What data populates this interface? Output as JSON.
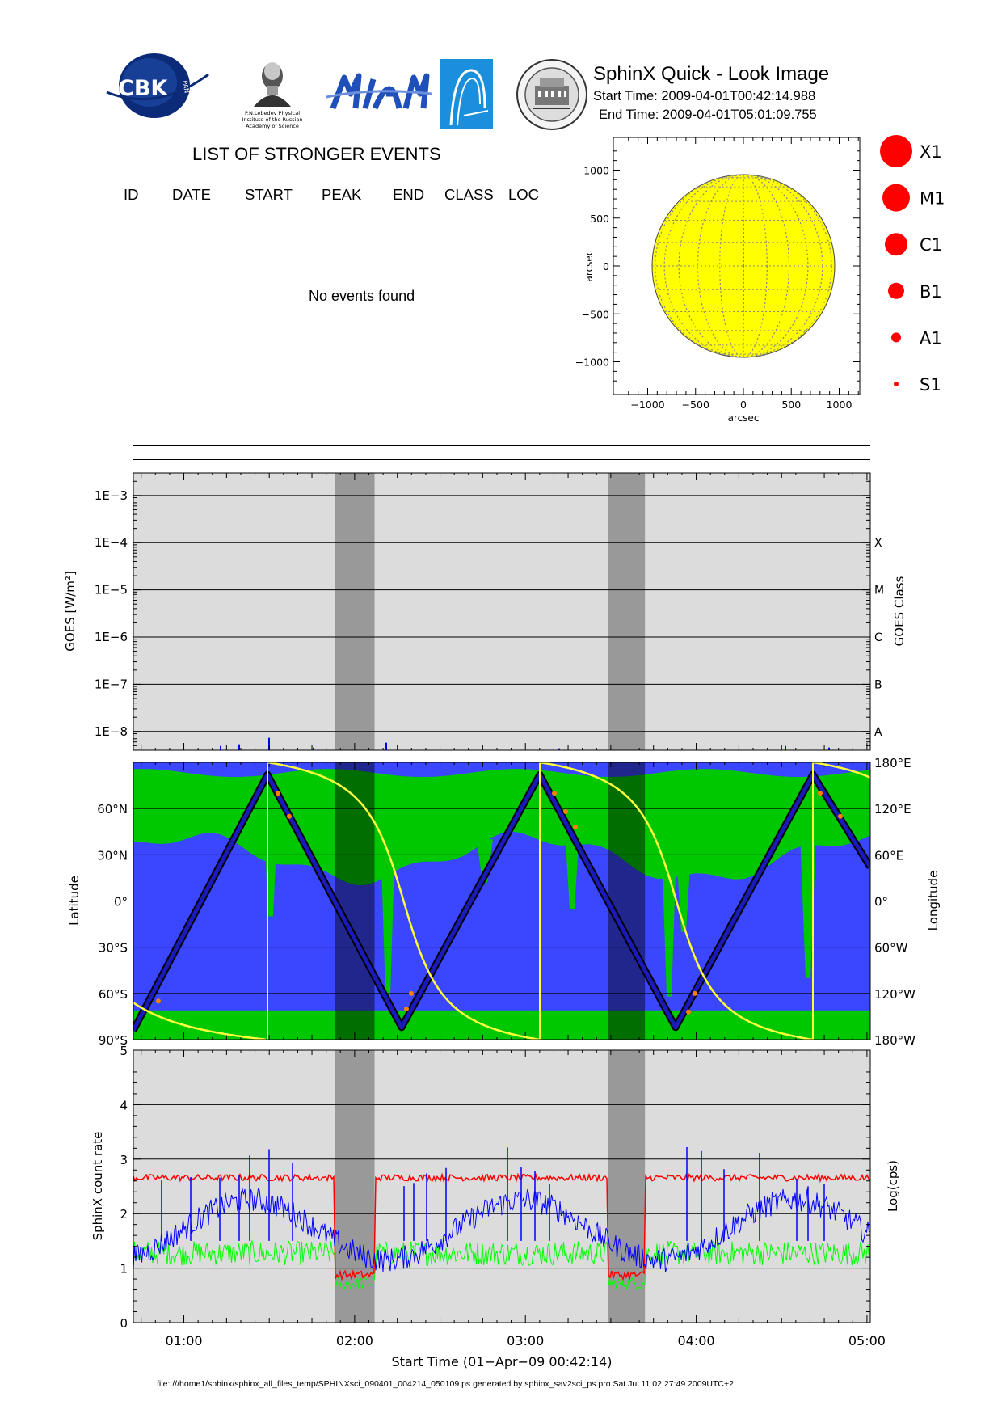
{
  "header": {
    "title": "SphinX Quick - Look Image",
    "start_time": "Start Time: 2009-04-01T00:42:14.988",
    "end_time": "End Time: 2009-04-01T05:01:09.755",
    "logos": [
      "CBK PAN",
      "P.N.Lebedev Physical Institute of the Russian Academy of Science",
      "MIFI",
      "arc-icon",
      "university-seal"
    ],
    "logo_texts": {
      "cbk": "CBK",
      "pan": "PAN",
      "lebedev": [
        "P.N.Lebedev Physical",
        "Institute of the Russian",
        "Academy of Science"
      ]
    }
  },
  "events": {
    "title": "LIST OF STRONGER EVENTS",
    "columns": [
      "ID",
      "DATE",
      "START",
      "PEAK",
      "END",
      "CLASS",
      "LOC"
    ],
    "empty_message": "No events found"
  },
  "sun_map": {
    "xlabel": "arcsec",
    "ylabel": "arcsec",
    "xticks": [
      "−1000",
      "−500",
      "0",
      "500",
      "1000"
    ],
    "yticks": [
      "1000",
      "500",
      "0",
      "−500",
      "−1000"
    ],
    "disk_color": "#ffff00",
    "legend": [
      "X1",
      "M1",
      "C1",
      "B1",
      "A1",
      "S1"
    ],
    "legend_color": "#ff0000"
  },
  "x_axis": {
    "ticks": [
      "01:00",
      "02:00",
      "03:00",
      "04:00",
      "05:00"
    ],
    "label": "Start Time (01−Apr−09 00:42:14)"
  },
  "night_intervals": [
    [
      "01:53",
      "02:07"
    ],
    [
      "03:29",
      "03:42"
    ]
  ],
  "chart_data": [
    {
      "type": "line",
      "name": "goes",
      "ylabel": "GOES [W/m²]",
      "ylabel2": "GOES Class",
      "yticks": [
        "1E−3",
        "1E−4",
        "1E−5",
        "1E−6",
        "1E−7",
        "1E−8"
      ],
      "class_ticks": [
        "X",
        "M",
        "C",
        "B",
        "A"
      ],
      "ylim": [
        4e-09,
        0.003
      ],
      "scale": "log",
      "series": [
        {
          "color": "#ff0000",
          "values_approx": "3.5E-9 flat"
        },
        {
          "color": "#0000ff",
          "values_approx": "3.5E-9 with spikes to ~8E-9"
        }
      ]
    },
    {
      "type": "line",
      "name": "orbit",
      "ylabel": "Latitude",
      "ylabel2": "Longitude",
      "lat_ticks": [
        "60°N",
        "30°N",
        "0°",
        "30°S",
        "60°S",
        "90°S"
      ],
      "lon_ticks": [
        "180°E",
        "120°E",
        "60°E",
        "0°",
        "60°W",
        "120°W",
        "180°W"
      ],
      "ylim": [
        -90,
        90
      ]
    },
    {
      "type": "line",
      "name": "sphinx",
      "ylabel": "SphinX count rate",
      "ylabel2": "Log(cps)",
      "yticks": [
        "0",
        "1",
        "2",
        "3",
        "4",
        "5"
      ],
      "ylim": [
        0,
        5
      ],
      "series": [
        {
          "color": "#ff0000",
          "level": 2.65
        },
        {
          "color": "#0000ff",
          "level": "1.3 to 2.3"
        },
        {
          "color": "#00ff00",
          "level": 1.3
        }
      ]
    }
  ],
  "footer": "file: ///home1/sphinx/sphinx_all_files_temp/SPHINXsci_090401_004214_050109.ps generated by sphinx_sav2sci_ps.pro Sat Jul 11 02:27:49 2009UTC+2"
}
